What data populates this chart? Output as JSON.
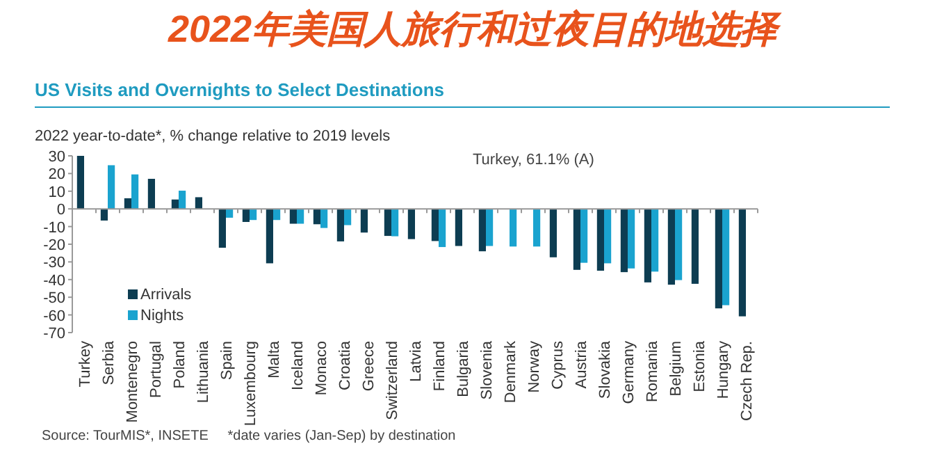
{
  "chart_data": {
    "type": "bar",
    "title": "2022年美国人旅行和过夜目的地选择",
    "subtitle": "US Visits and Overnights to Select Destinations",
    "ylabel": "2022 year-to-date*, % change relative to 2019 levels",
    "categories": [
      "Turkey",
      "Serbia",
      "Montenegro",
      "Portugal",
      "Poland",
      "Lithuania",
      "Spain",
      "Luxembourg",
      "Malta",
      "Iceland",
      "Monaco",
      "Croatia",
      "Greece",
      "Switzerland",
      "Latvia",
      "Finland",
      "Bulgaria",
      "Slovenia",
      "Denmark",
      "Norway",
      "Cyprus",
      "Austria",
      "Slovakia",
      "Germany",
      "Romania",
      "Belgium",
      "Estonia",
      "Hungary",
      "Czech Rep."
    ],
    "series": [
      {
        "name": "Arrivals",
        "color": "#0d3d52",
        "values": [
          30,
          -6.6,
          6,
          17,
          5.3,
          6.6,
          -22,
          -7.4,
          -30.8,
          -8.4,
          -8.7,
          -18.4,
          -13.4,
          -15.3,
          -17.1,
          -18.2,
          -21,
          -24,
          null,
          null,
          -27.4,
          -34.5,
          -35,
          -35.8,
          -41.6,
          -42.9,
          -42.4,
          -56.3,
          -60.8
        ]
      },
      {
        "name": "Nights",
        "color": "#1aa3cf",
        "values": [
          null,
          24.7,
          19.5,
          null,
          10.3,
          null,
          -5,
          -6.3,
          -6.3,
          -8.4,
          -10.8,
          -9.2,
          null,
          -15.5,
          null,
          -21.6,
          null,
          -21,
          -21.3,
          -21.3,
          null,
          -30.5,
          -30.8,
          -33.7,
          -35.5,
          -40.3,
          null,
          -54.5,
          null
        ]
      }
    ],
    "ylim": [
      -70,
      30
    ],
    "yticks": [
      -70,
      -60,
      -50,
      -40,
      -30,
      -20,
      -10,
      0,
      10,
      20,
      30
    ],
    "legend": "bottom left",
    "annotations": [
      "Turkey, 61.1% (A)",
      "Source: TourMIS*, INSETE     *date varies (Jan-Sep) by destination"
    ]
  }
}
